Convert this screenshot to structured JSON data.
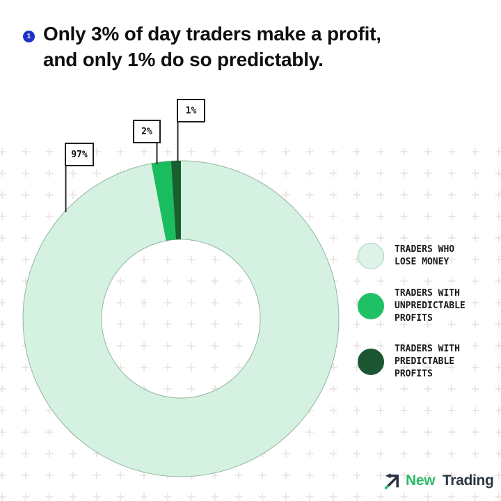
{
  "header": {
    "badge": "1",
    "title_line1": "Only 3% of day traders make a profit,",
    "title_line2": "and only 1% do so predictably."
  },
  "chart_data": {
    "type": "pie",
    "variant": "donut",
    "title": "Only 3% of day traders make a profit, and only 1% do so predictably.",
    "direction": "clockwise",
    "start_angle": "12-o-clock",
    "inner_radius_ratio": 0.5,
    "legend_position": "right",
    "slices": [
      {
        "label": "Traders who lose money",
        "value": 97,
        "display": "97%",
        "color": "#d5f1e1"
      },
      {
        "label": "Traders with unpredictable profits",
        "value": 2,
        "display": "2%",
        "color": "#1abd5d"
      },
      {
        "label": "Traders with predictable profits",
        "value": 1,
        "display": "1%",
        "color": "#16602f"
      }
    ]
  },
  "legend": {
    "items": [
      {
        "swatch_color": "#ddf3e8",
        "swatch_border": "#a2d2ba",
        "lines": [
          "TRADERS WHO",
          "LOSE MONEY",
          ""
        ]
      },
      {
        "swatch_color": "#1fc165",
        "swatch_border": "#1fc165",
        "lines": [
          "TRADERS WITH",
          "UNPREDICTABLE",
          "PROFITS"
        ]
      },
      {
        "swatch_color": "#1b5632",
        "swatch_border": "#1b5632",
        "lines": [
          "TRADERS WITH",
          "PREDICTABLE",
          "PROFITS"
        ]
      }
    ]
  },
  "footer": {
    "brand_first": "New",
    "brand_second": "Trading"
  },
  "colors": {
    "bullet_blue": "#1e33c6",
    "pattern_plus": "#eadfdf",
    "leader_line": "#2a2a2a",
    "donut_outline": "#5d937626"
  }
}
